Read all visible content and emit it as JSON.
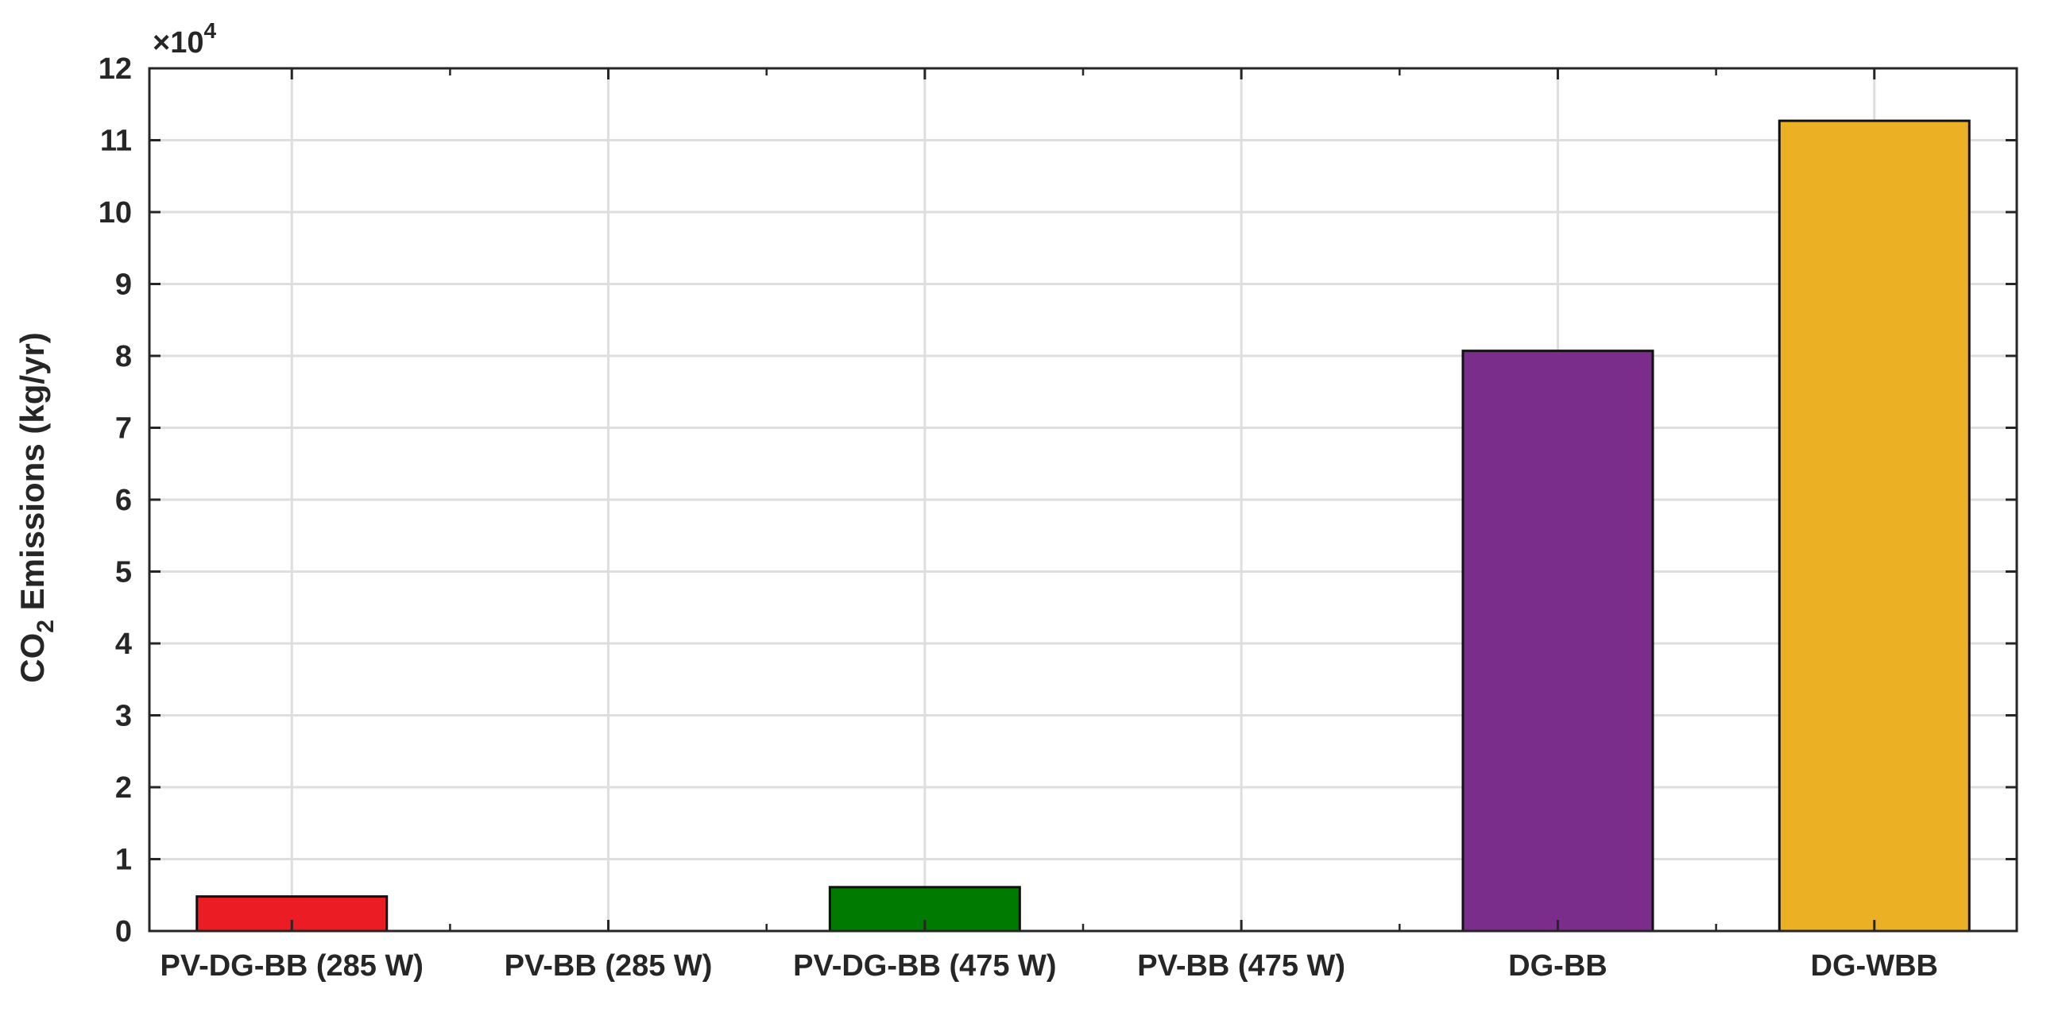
{
  "chart_data": {
    "type": "bar",
    "categories": [
      "PV-DG-BB (285 W)",
      "PV-BB (285 W)",
      "PV-DG-BB (475 W)",
      "PV-BB (475 W)",
      "DG-BB",
      "DG-WBB"
    ],
    "values": [
      4800,
      0,
      6100,
      0,
      80700,
      112700
    ],
    "bar_colors": [
      "#ec1c24",
      "#ec1c24",
      "#007a00",
      "#007a00",
      "#7b2d8b",
      "#ecb024"
    ],
    "ylabel": {
      "main": "CO",
      "sub": "2",
      "rest": " Emissions (kg/yr)"
    },
    "ylim": [
      0,
      120000
    ],
    "yticks": [
      0,
      1,
      2,
      3,
      4,
      5,
      6,
      7,
      8,
      9,
      10,
      11,
      12
    ],
    "ytick_labels": [
      "0",
      "1",
      "2",
      "3",
      "4",
      "5",
      "6",
      "7",
      "8",
      "9",
      "10",
      "11",
      "12"
    ],
    "y_exponent": {
      "base": "×10",
      "power": "4"
    },
    "grid": true,
    "legend": "none"
  }
}
